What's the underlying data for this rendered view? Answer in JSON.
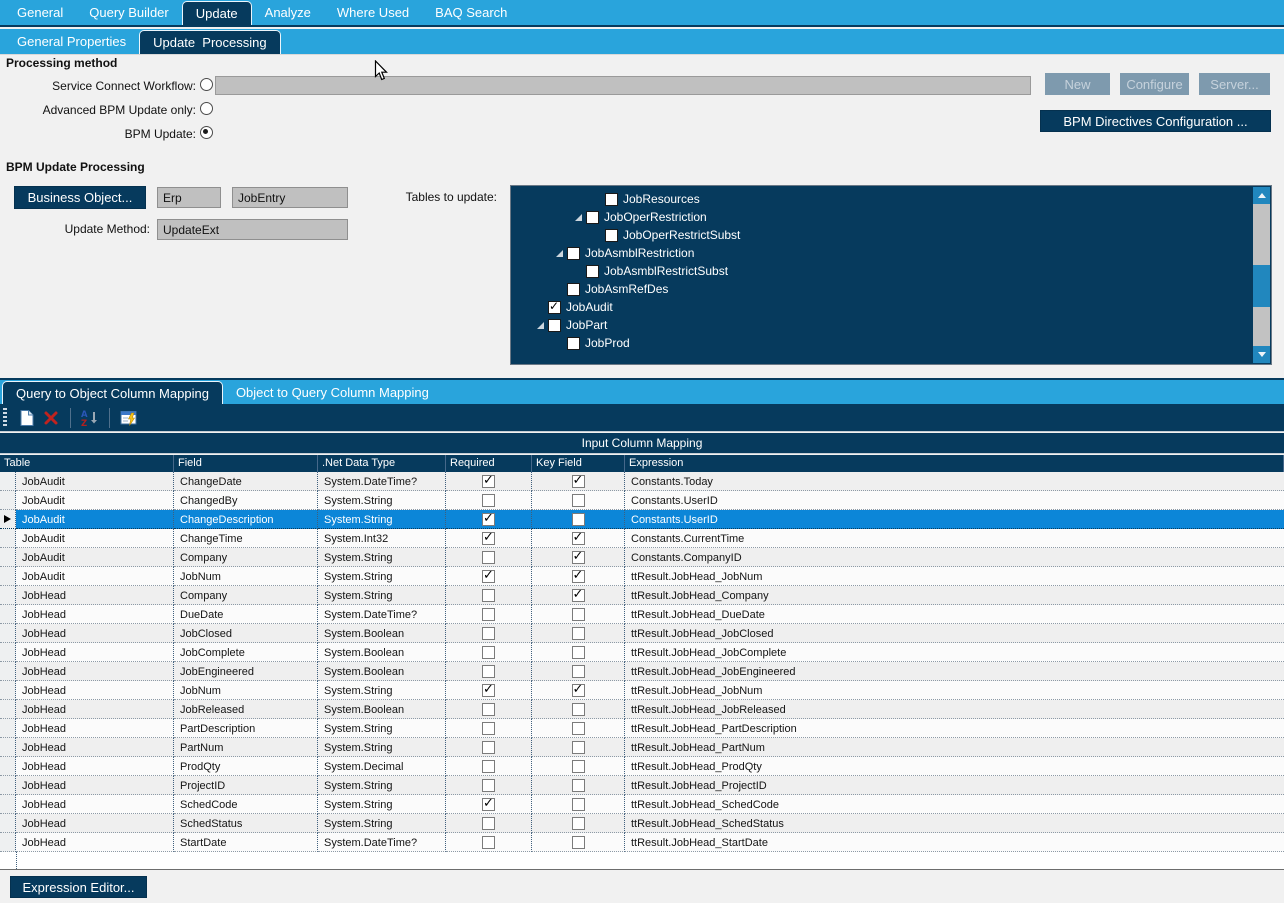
{
  "main_tabs": {
    "items": [
      "General",
      "Query Builder",
      "Update",
      "Analyze",
      "Where Used",
      "BAQ Search"
    ],
    "active": "Update"
  },
  "sub_tabs": {
    "items": [
      "General Properties",
      "Update  Processing"
    ],
    "active": "Update  Processing"
  },
  "processing_method": {
    "heading": "Processing method",
    "radios": [
      {
        "label": "Service Connect Workflow:",
        "selected": false
      },
      {
        "label": "Advanced BPM Update only:",
        "selected": false
      },
      {
        "label": "BPM Update:",
        "selected": true
      }
    ],
    "workflow_value": "",
    "buttons": {
      "new": "New",
      "configure": "Configure",
      "server": "Server..."
    },
    "bpm_directives_button": "BPM Directives Configuration ..."
  },
  "bpm_update": {
    "heading": "BPM Update Processing",
    "business_object_button": "Business Object...",
    "system": "Erp",
    "object": "JobEntry",
    "update_method_label": "Update Method:",
    "update_method": "UpdateExt",
    "tables_label": "Tables to update:",
    "tree": [
      {
        "label": "JobResources",
        "level": 3,
        "expander": false,
        "checked": false
      },
      {
        "label": "JobOperRestriction",
        "level": 2,
        "expander": true,
        "checked": false
      },
      {
        "label": "JobOperRestrictSubst",
        "level": 3,
        "expander": false,
        "checked": false
      },
      {
        "label": "JobAsmblRestriction",
        "level": 1,
        "expander": true,
        "checked": false
      },
      {
        "label": "JobAsmblRestrictSubst",
        "level": 2,
        "expander": false,
        "checked": false
      },
      {
        "label": "JobAsmRefDes",
        "level": 1,
        "expander": false,
        "checked": false
      },
      {
        "label": "JobAudit",
        "level": 0,
        "expander": false,
        "checked": true
      },
      {
        "label": "JobPart",
        "level": 0,
        "expander": true,
        "checked": false
      },
      {
        "label": "JobProd",
        "level": 1,
        "expander": false,
        "checked": false
      }
    ]
  },
  "mapping": {
    "tabs": {
      "items": [
        "Query to Object Column Mapping",
        "Object to Query Column Mapping"
      ],
      "active": "Query to Object Column Mapping"
    },
    "toolbar_icons": [
      "new-row-icon",
      "delete-row-icon",
      "sort-az-icon",
      "expression-editor-icon"
    ],
    "band_title": "Input Column Mapping",
    "columns": [
      "Table",
      "Field",
      ".Net Data Type",
      "Required",
      "Key Field",
      "Expression"
    ],
    "rows": [
      {
        "table": "JobAudit",
        "field": "ChangeDate",
        "type": "System.DateTime?",
        "required": true,
        "key": true,
        "expression": "Constants.Today",
        "selected": false
      },
      {
        "table": "JobAudit",
        "field": "ChangedBy",
        "type": "System.String",
        "required": false,
        "key": false,
        "expression": "Constants.UserID",
        "selected": false
      },
      {
        "table": "JobAudit",
        "field": "ChangeDescription",
        "type": "System.String",
        "required": true,
        "key": false,
        "expression": "Constants.UserID",
        "selected": true
      },
      {
        "table": "JobAudit",
        "field": "ChangeTime",
        "type": "System.Int32",
        "required": true,
        "key": true,
        "expression": "Constants.CurrentTime",
        "selected": false
      },
      {
        "table": "JobAudit",
        "field": "Company",
        "type": "System.String",
        "required": false,
        "key": true,
        "expression": "Constants.CompanyID",
        "selected": false
      },
      {
        "table": "JobAudit",
        "field": "JobNum",
        "type": "System.String",
        "required": true,
        "key": true,
        "expression": "ttResult.JobHead_JobNum",
        "selected": false
      },
      {
        "table": "JobHead",
        "field": "Company",
        "type": "System.String",
        "required": false,
        "key": true,
        "expression": "ttResult.JobHead_Company",
        "selected": false
      },
      {
        "table": "JobHead",
        "field": "DueDate",
        "type": "System.DateTime?",
        "required": false,
        "key": false,
        "expression": "ttResult.JobHead_DueDate",
        "selected": false
      },
      {
        "table": "JobHead",
        "field": "JobClosed",
        "type": "System.Boolean",
        "required": false,
        "key": false,
        "expression": "ttResult.JobHead_JobClosed",
        "selected": false
      },
      {
        "table": "JobHead",
        "field": "JobComplete",
        "type": "System.Boolean",
        "required": false,
        "key": false,
        "expression": "ttResult.JobHead_JobComplete",
        "selected": false
      },
      {
        "table": "JobHead",
        "field": "JobEngineered",
        "type": "System.Boolean",
        "required": false,
        "key": false,
        "expression": "ttResult.JobHead_JobEngineered",
        "selected": false
      },
      {
        "table": "JobHead",
        "field": "JobNum",
        "type": "System.String",
        "required": true,
        "key": true,
        "expression": "ttResult.JobHead_JobNum",
        "selected": false
      },
      {
        "table": "JobHead",
        "field": "JobReleased",
        "type": "System.Boolean",
        "required": false,
        "key": false,
        "expression": "ttResult.JobHead_JobReleased",
        "selected": false
      },
      {
        "table": "JobHead",
        "field": "PartDescription",
        "type": "System.String",
        "required": false,
        "key": false,
        "expression": "ttResult.JobHead_PartDescription",
        "selected": false
      },
      {
        "table": "JobHead",
        "field": "PartNum",
        "type": "System.String",
        "required": false,
        "key": false,
        "expression": "ttResult.JobHead_PartNum",
        "selected": false
      },
      {
        "table": "JobHead",
        "field": "ProdQty",
        "type": "System.Decimal",
        "required": false,
        "key": false,
        "expression": "ttResult.JobHead_ProdQty",
        "selected": false
      },
      {
        "table": "JobHead",
        "field": "ProjectID",
        "type": "System.String",
        "required": false,
        "key": false,
        "expression": "ttResult.JobHead_ProjectID",
        "selected": false
      },
      {
        "table": "JobHead",
        "field": "SchedCode",
        "type": "System.String",
        "required": true,
        "key": false,
        "expression": "ttResult.JobHead_SchedCode",
        "selected": false
      },
      {
        "table": "JobHead",
        "field": "SchedStatus",
        "type": "System.String",
        "required": false,
        "key": false,
        "expression": "ttResult.JobHead_SchedStatus",
        "selected": false
      },
      {
        "table": "JobHead",
        "field": "StartDate",
        "type": "System.DateTime?",
        "required": false,
        "key": false,
        "expression": "ttResult.JobHead_StartDate",
        "selected": false
      }
    ]
  },
  "expression_editor_button": "Expression Editor...",
  "colors": {
    "accent_blue": "#29a4dc",
    "navy": "#063a5d",
    "selected_row": "#0c86d8",
    "disabled_button": "#7e9aae"
  }
}
